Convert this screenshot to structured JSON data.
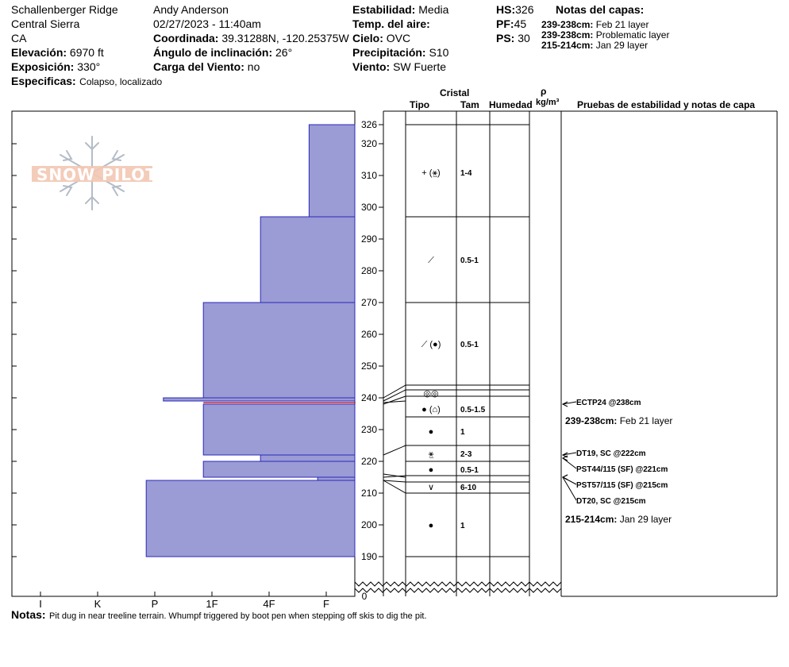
{
  "header": {
    "location": "Schallenberger Ridge",
    "range": "Central Sierra",
    "state": "CA",
    "elevation_label": "Elevación:",
    "elevation_value": "6970 ft",
    "aspect_label": "Exposición:",
    "aspect_value": "330°",
    "specifics_label": "Especificas:",
    "specifics_value": "Colapso, localizado",
    "observer": "Andy Anderson",
    "datetime": "02/27/2023 - 11:40am",
    "coord_label": "Coordinada:",
    "coord_value": "39.31288N, -120.25375W",
    "incline_label": "Ángulo de inclinación:",
    "incline_value": "26°",
    "wind_load_label": "Carga del Viento:",
    "wind_load_value": "no",
    "stability_label": "Estabilidad:",
    "stability_value": "Media",
    "air_temp_label": "Temp. del aire:",
    "air_temp_value": "",
    "sky_label": "Cielo:",
    "sky_value": "OVC",
    "precip_label": "Precipitación:",
    "precip_value": "S10",
    "wind_label": "Viento:",
    "wind_value": "SW Fuerte",
    "hs_label": "HS:",
    "hs_value": "326",
    "pf_label": "PF:",
    "pf_value": "45",
    "ps_label": "PS:",
    "ps_value": "30",
    "layer_notes_title": "Notas del capas:",
    "layer_notes": [
      {
        "range": "239-238cm:",
        "text": "Feb 21 layer"
      },
      {
        "range": "239-238cm:",
        "text": "Problematic layer"
      },
      {
        "range": "215-214cm:",
        "text": "Jan 29 layer"
      }
    ]
  },
  "columns": {
    "cristal": "Cristal",
    "tipo": "Tipo",
    "tam": "Tam",
    "humedad": "Humedad",
    "rho": "ρ",
    "density_unit": "kg/m³",
    "tests": "Pruebas de estabilidad y notas de capa"
  },
  "notes_label": "Notas:",
  "notes_value": "Pit dug in near treeline terrain. Whumpf triggered by boot pen when stepping off skis to dig the pit.",
  "logo_text": "SNOW PILOT",
  "chart_data": {
    "type": "snow-profile",
    "y_axis": {
      "range": [
        190,
        326
      ],
      "ticks": [
        190,
        200,
        210,
        220,
        230,
        240,
        250,
        260,
        270,
        280,
        290,
        300,
        310,
        320,
        326
      ],
      "break_label": "0"
    },
    "hardness_scale": {
      "labels": [
        "I",
        "K",
        "P",
        "1F",
        "4F",
        "F"
      ],
      "values": [
        0.5,
        1.5,
        2.5,
        3.5,
        4.5,
        5.5
      ],
      "max": 6
    },
    "hardness_layers": [
      {
        "top": 326,
        "bottom": 297,
        "hardness": 0.8
      },
      {
        "top": 297,
        "bottom": 270,
        "hardness": 1.65
      },
      {
        "top": 270,
        "bottom": 240,
        "hardness": 2.65
      },
      {
        "top": 240,
        "bottom": 239,
        "hardness": 3.35
      },
      {
        "top": 238,
        "bottom": 222,
        "hardness": 2.65
      },
      {
        "top": 222,
        "bottom": 220,
        "hardness": 1.65
      },
      {
        "top": 220,
        "bottom": 215,
        "hardness": 2.65
      },
      {
        "top": 215,
        "bottom": 214,
        "hardness": 0.65
      },
      {
        "top": 214,
        "bottom": 190,
        "hardness": 3.65
      }
    ],
    "layer_boundaries": [
      326,
      297,
      270,
      244,
      239,
      238,
      234,
      225,
      220,
      215,
      214,
      210,
      190
    ],
    "crystals": [
      {
        "at": 311,
        "type": "+ (⚹̲)",
        "size": "1-4"
      },
      {
        "at": 283.5,
        "type": "⟋",
        "size": "0.5-1"
      },
      {
        "at": 257,
        "type": "⟋ (●)",
        "size": "0.5-1"
      },
      {
        "at": 241.5,
        "type": "◎◎",
        "size": ""
      },
      {
        "at": 236.5,
        "type": "● (⌂)",
        "size": "0.5-1.5"
      },
      {
        "at": 229.5,
        "type": "●",
        "size": "1"
      },
      {
        "at": 222.5,
        "type": "⚹̲",
        "size": "2-3"
      },
      {
        "at": 217.5,
        "type": "●",
        "size": "0.5-1"
      },
      {
        "at": 212,
        "type": "∨",
        "size": "6-10"
      },
      {
        "at": 200,
        "type": "●",
        "size": "1"
      }
    ],
    "tests": [
      {
        "at": 238,
        "label": "ECTP24 @238cm",
        "arrow": true,
        "bold": true
      },
      {
        "at": 238,
        "label_range": "239-238cm:",
        "label_text": "Feb 21 layer",
        "arrow": false
      },
      {
        "at": 222,
        "label": "DT19, SC @222cm",
        "arrow": true,
        "bold": true
      },
      {
        "at": 221,
        "label": "PST44/115 (SF) @221cm",
        "arrow": true,
        "bold": true
      },
      {
        "at": 215,
        "label": "PST57/115 (SF) @215cm",
        "arrow": true,
        "bold": true
      },
      {
        "at": 215,
        "label": "DT20, SC @215cm",
        "arrow": true,
        "bold": true
      },
      {
        "at": 215,
        "label_range": "215-214cm:",
        "label_text": "Jan 29 layer",
        "arrow": false
      }
    ]
  }
}
